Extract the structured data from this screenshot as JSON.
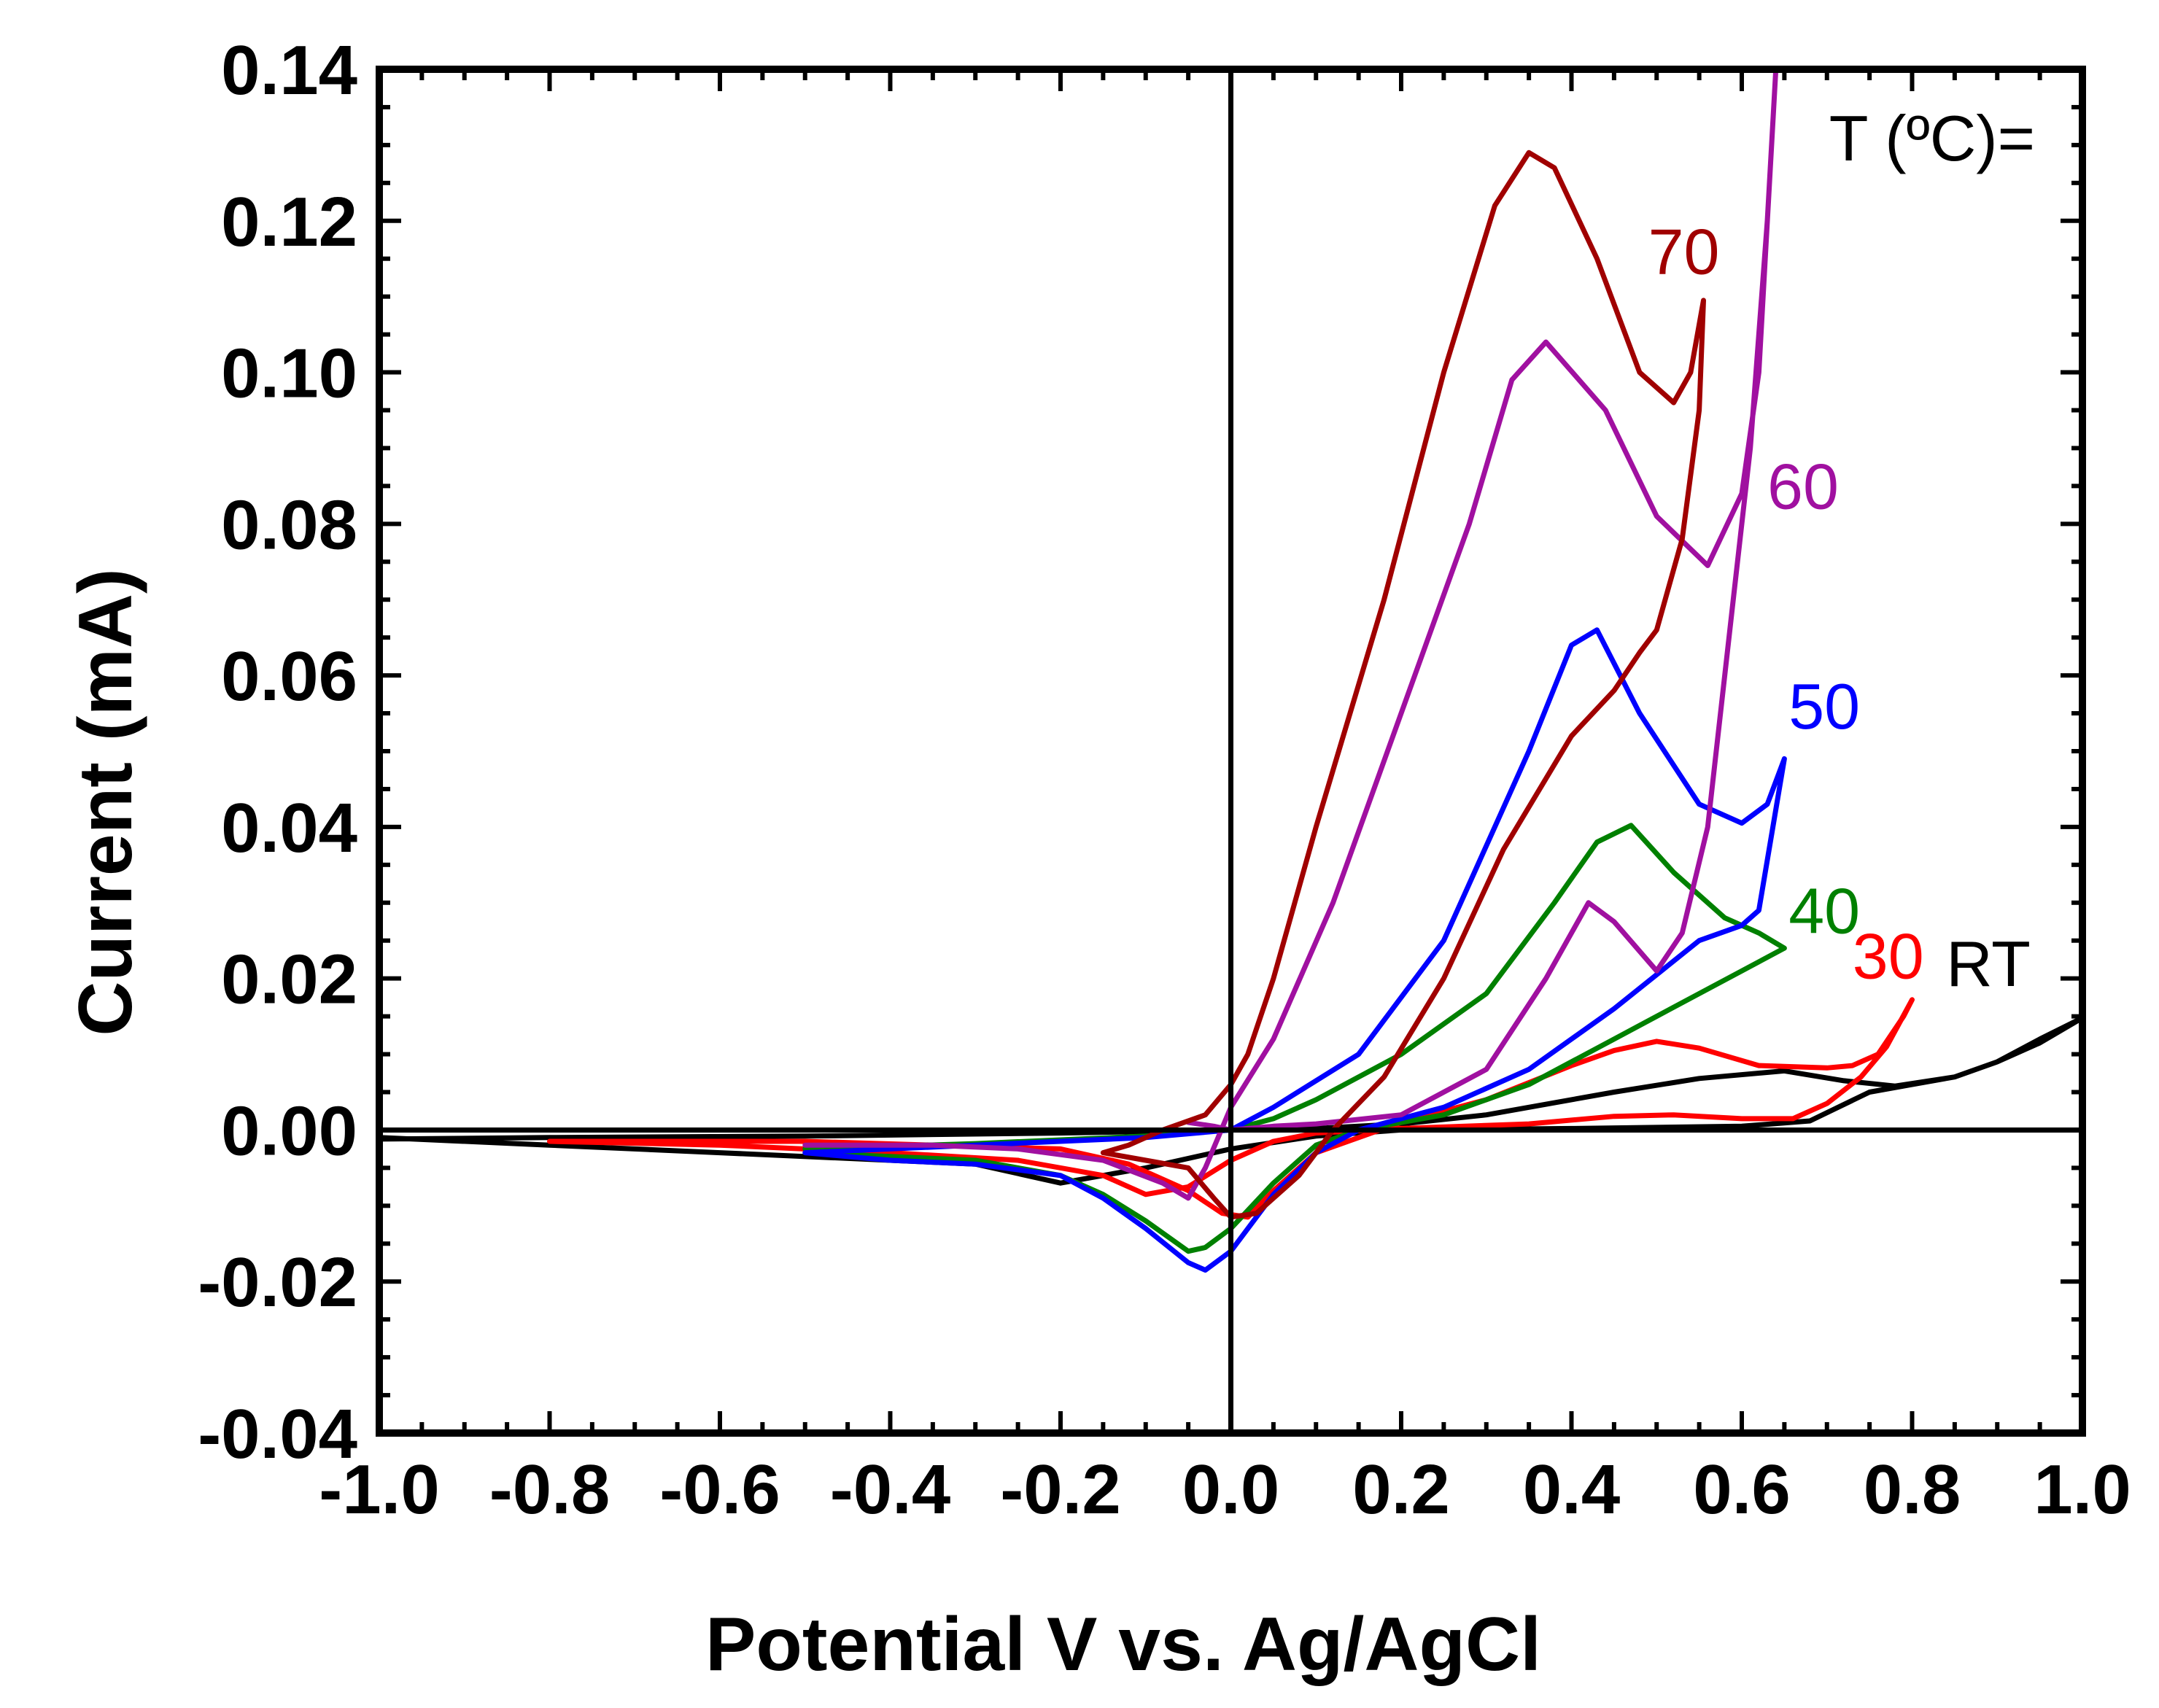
{
  "chart_data": {
    "type": "line",
    "title": "",
    "xlabel": "Potential V vs. Ag/AgCl",
    "ylabel": "Current (mA)",
    "xlim": [
      -1.0,
      1.0
    ],
    "ylim": [
      -0.04,
      0.14
    ],
    "grid": false,
    "x_ticks": [
      -1.0,
      -0.8,
      -0.6,
      -0.4,
      -0.2,
      0.0,
      0.2,
      0.4,
      0.6,
      0.8,
      1.0
    ],
    "x_tick_labels": [
      "-1.0",
      "-0.8",
      "-0.6",
      "-0.4",
      "-0.2",
      "0.0",
      "0.2",
      "0.4",
      "0.6",
      "0.8",
      "1.0"
    ],
    "y_ticks": [
      -0.04,
      -0.02,
      0.0,
      0.02,
      0.04,
      0.06,
      0.08,
      0.1,
      0.12,
      0.14
    ],
    "y_tick_labels": [
      "-0.04",
      "-0.02",
      "0.00",
      "0.02",
      "0.04",
      "0.06",
      "0.08",
      "0.10",
      "0.12",
      "0.14"
    ],
    "legend_title": "T (ºC)=",
    "series": [
      {
        "name": "RT",
        "color": "#000000",
        "label_anchor": [
          0.84,
          0.019
        ],
        "points": [
          [
            -1.0,
            -0.001
          ],
          [
            -0.8,
            -0.002
          ],
          [
            -0.6,
            -0.003
          ],
          [
            -0.4,
            -0.004
          ],
          [
            -0.3,
            -0.0045
          ],
          [
            -0.2,
            -0.007
          ],
          [
            -0.15,
            -0.006
          ],
          [
            -0.1,
            -0.005
          ],
          [
            0.0,
            -0.0025
          ],
          [
            0.1,
            -0.0008
          ],
          [
            0.2,
            0.0
          ],
          [
            0.4,
            0.0002
          ],
          [
            0.6,
            0.0005
          ],
          [
            0.68,
            0.0012
          ],
          [
            0.75,
            0.005
          ],
          [
            0.8,
            0.006
          ],
          [
            0.85,
            0.007
          ],
          [
            0.9,
            0.009
          ],
          [
            0.95,
            0.0115
          ],
          [
            1.0,
            0.0148
          ],
          [
            0.95,
            0.012
          ],
          [
            0.9,
            0.009
          ],
          [
            0.85,
            0.007
          ],
          [
            0.78,
            0.0058
          ],
          [
            0.72,
            0.0065
          ],
          [
            0.65,
            0.0078
          ],
          [
            0.55,
            0.0068
          ],
          [
            0.45,
            0.005
          ],
          [
            0.3,
            0.002
          ],
          [
            0.2,
            0.0008
          ],
          [
            0.1,
            0.0002
          ],
          [
            0.0,
            0.0
          ],
          [
            -0.2,
            -0.0004
          ],
          [
            -0.5,
            -0.0008
          ],
          [
            -0.8,
            -0.001
          ],
          [
            -1.0,
            -0.0012
          ]
        ]
      },
      {
        "name": "30",
        "color": "#ff0000",
        "label_anchor": [
          0.73,
          0.02
        ],
        "points": [
          [
            -0.8,
            -0.0015
          ],
          [
            -0.6,
            -0.002
          ],
          [
            -0.4,
            -0.003
          ],
          [
            -0.25,
            -0.004
          ],
          [
            -0.15,
            -0.006
          ],
          [
            -0.1,
            -0.0085
          ],
          [
            -0.05,
            -0.0075
          ],
          [
            0.0,
            -0.004
          ],
          [
            0.05,
            -0.0015
          ],
          [
            0.1,
            -0.0004
          ],
          [
            0.2,
            0.0002
          ],
          [
            0.35,
            0.0008
          ],
          [
            0.45,
            0.0018
          ],
          [
            0.52,
            0.002
          ],
          [
            0.6,
            0.0015
          ],
          [
            0.66,
            0.0015
          ],
          [
            0.7,
            0.0035
          ],
          [
            0.74,
            0.007
          ],
          [
            0.77,
            0.011
          ],
          [
            0.8,
            0.0172
          ],
          [
            0.79,
            0.015
          ],
          [
            0.76,
            0.01
          ],
          [
            0.73,
            0.0085
          ],
          [
            0.7,
            0.0082
          ],
          [
            0.62,
            0.0085
          ],
          [
            0.55,
            0.0108
          ],
          [
            0.5,
            0.0117
          ],
          [
            0.45,
            0.0105
          ],
          [
            0.4,
            0.0085
          ],
          [
            0.3,
            0.004
          ],
          [
            0.2,
            0.001
          ],
          [
            0.1,
            -0.003
          ],
          [
            0.05,
            -0.008
          ],
          [
            0.02,
            -0.0115
          ],
          [
            -0.01,
            -0.011
          ],
          [
            -0.05,
            -0.008
          ],
          [
            -0.12,
            -0.0045
          ],
          [
            -0.2,
            -0.0025
          ],
          [
            -0.5,
            -0.0015
          ],
          [
            -0.8,
            -0.0015
          ]
        ]
      },
      {
        "name": "40",
        "color": "#008000",
        "label_anchor": [
          0.655,
          0.026
        ],
        "points": [
          [
            -0.5,
            -0.003
          ],
          [
            -0.4,
            -0.0035
          ],
          [
            -0.3,
            -0.004
          ],
          [
            -0.2,
            -0.006
          ],
          [
            -0.15,
            -0.0085
          ],
          [
            -0.1,
            -0.012
          ],
          [
            -0.05,
            -0.016
          ],
          [
            -0.03,
            -0.0155
          ],
          [
            0.0,
            -0.013
          ],
          [
            0.05,
            -0.007
          ],
          [
            0.1,
            -0.002
          ],
          [
            0.15,
            0.0
          ],
          [
            0.25,
            0.002
          ],
          [
            0.35,
            0.006
          ],
          [
            0.45,
            0.012
          ],
          [
            0.55,
            0.018
          ],
          [
            0.6,
            0.021
          ],
          [
            0.65,
            0.024
          ],
          [
            0.62,
            0.026
          ],
          [
            0.58,
            0.028
          ],
          [
            0.52,
            0.034
          ],
          [
            0.47,
            0.0402
          ],
          [
            0.43,
            0.038
          ],
          [
            0.38,
            0.03
          ],
          [
            0.3,
            0.018
          ],
          [
            0.2,
            0.01
          ],
          [
            0.1,
            0.004
          ],
          [
            0.05,
            0.0015
          ],
          [
            0.0,
            0.0
          ],
          [
            -0.1,
            -0.0008
          ],
          [
            -0.3,
            -0.0018
          ],
          [
            -0.5,
            -0.0025
          ]
        ]
      },
      {
        "name": "50",
        "color": "#0000ff",
        "label_anchor": [
          0.655,
          0.053
        ],
        "points": [
          [
            -0.5,
            -0.003
          ],
          [
            -0.4,
            -0.004
          ],
          [
            -0.3,
            -0.0045
          ],
          [
            -0.2,
            -0.006
          ],
          [
            -0.15,
            -0.009
          ],
          [
            -0.1,
            -0.013
          ],
          [
            -0.05,
            -0.0175
          ],
          [
            -0.03,
            -0.0185
          ],
          [
            0.0,
            -0.016
          ],
          [
            0.05,
            -0.0085
          ],
          [
            0.1,
            -0.003
          ],
          [
            0.15,
            0.0
          ],
          [
            0.25,
            0.003
          ],
          [
            0.35,
            0.008
          ],
          [
            0.45,
            0.016
          ],
          [
            0.55,
            0.025
          ],
          [
            0.6,
            0.027
          ],
          [
            0.62,
            0.029
          ],
          [
            0.65,
            0.049
          ],
          [
            0.63,
            0.043
          ],
          [
            0.6,
            0.0405
          ],
          [
            0.55,
            0.043
          ],
          [
            0.48,
            0.055
          ],
          [
            0.43,
            0.066
          ],
          [
            0.4,
            0.064
          ],
          [
            0.35,
            0.05
          ],
          [
            0.25,
            0.025
          ],
          [
            0.15,
            0.01
          ],
          [
            0.05,
            0.003
          ],
          [
            0.0,
            0.0
          ],
          [
            -0.1,
            -0.001
          ],
          [
            -0.3,
            -0.002
          ],
          [
            -0.5,
            -0.003
          ]
        ]
      },
      {
        "name": "60",
        "color": "#a010a0",
        "label_anchor": [
          0.63,
          0.082
        ],
        "points": [
          [
            -0.05,
            0.001
          ],
          [
            -0.02,
            0.0005
          ],
          [
            0.0,
            0.0
          ],
          [
            0.05,
            0.0005
          ],
          [
            0.1,
            0.0008
          ],
          [
            0.2,
            0.002
          ],
          [
            0.3,
            0.008
          ],
          [
            0.37,
            0.02
          ],
          [
            0.42,
            0.03
          ],
          [
            0.45,
            0.0275
          ],
          [
            0.5,
            0.021
          ],
          [
            0.53,
            0.026
          ],
          [
            0.56,
            0.04
          ],
          [
            0.59,
            0.07
          ],
          [
            0.61,
            0.09
          ],
          [
            0.63,
            0.12
          ],
          [
            0.64,
            0.14
          ],
          [
            0.62,
            0.1
          ],
          [
            0.6,
            0.084
          ],
          [
            0.56,
            0.0745
          ],
          [
            0.5,
            0.081
          ],
          [
            0.44,
            0.095
          ],
          [
            0.37,
            0.104
          ],
          [
            0.33,
            0.099
          ],
          [
            0.28,
            0.08
          ],
          [
            0.2,
            0.055
          ],
          [
            0.12,
            0.03
          ],
          [
            0.05,
            0.012
          ],
          [
            0.0,
            0.003
          ],
          [
            -0.03,
            -0.005
          ],
          [
            -0.05,
            -0.009
          ],
          [
            -0.08,
            -0.007
          ],
          [
            -0.15,
            -0.004
          ],
          [
            -0.25,
            -0.0025
          ],
          [
            -0.35,
            -0.002
          ],
          [
            -0.5,
            -0.002
          ]
        ]
      },
      {
        "name": "70",
        "color": "#a00000",
        "label_anchor": [
          0.49,
          0.113
        ],
        "points": [
          [
            -0.15,
            -0.003
          ],
          [
            -0.1,
            -0.004
          ],
          [
            -0.05,
            -0.005
          ],
          [
            -0.02,
            -0.009
          ],
          [
            0.0,
            -0.0115
          ],
          [
            0.03,
            -0.011
          ],
          [
            0.08,
            -0.006
          ],
          [
            0.12,
            0.0
          ],
          [
            0.18,
            0.007
          ],
          [
            0.25,
            0.02
          ],
          [
            0.32,
            0.037
          ],
          [
            0.4,
            0.052
          ],
          [
            0.45,
            0.058
          ],
          [
            0.48,
            0.063
          ],
          [
            0.5,
            0.066
          ],
          [
            0.53,
            0.078
          ],
          [
            0.55,
            0.095
          ],
          [
            0.555,
            0.1095
          ],
          [
            0.54,
            0.1
          ],
          [
            0.52,
            0.096
          ],
          [
            0.48,
            0.1
          ],
          [
            0.43,
            0.115
          ],
          [
            0.38,
            0.127
          ],
          [
            0.35,
            0.129
          ],
          [
            0.31,
            0.122
          ],
          [
            0.25,
            0.1
          ],
          [
            0.18,
            0.07
          ],
          [
            0.1,
            0.04
          ],
          [
            0.05,
            0.02
          ],
          [
            0.02,
            0.01
          ],
          [
            0.0,
            0.006
          ],
          [
            -0.03,
            0.002
          ],
          [
            -0.08,
            0.0
          ],
          [
            -0.12,
            -0.002
          ],
          [
            -0.15,
            -0.003
          ]
        ]
      }
    ]
  }
}
